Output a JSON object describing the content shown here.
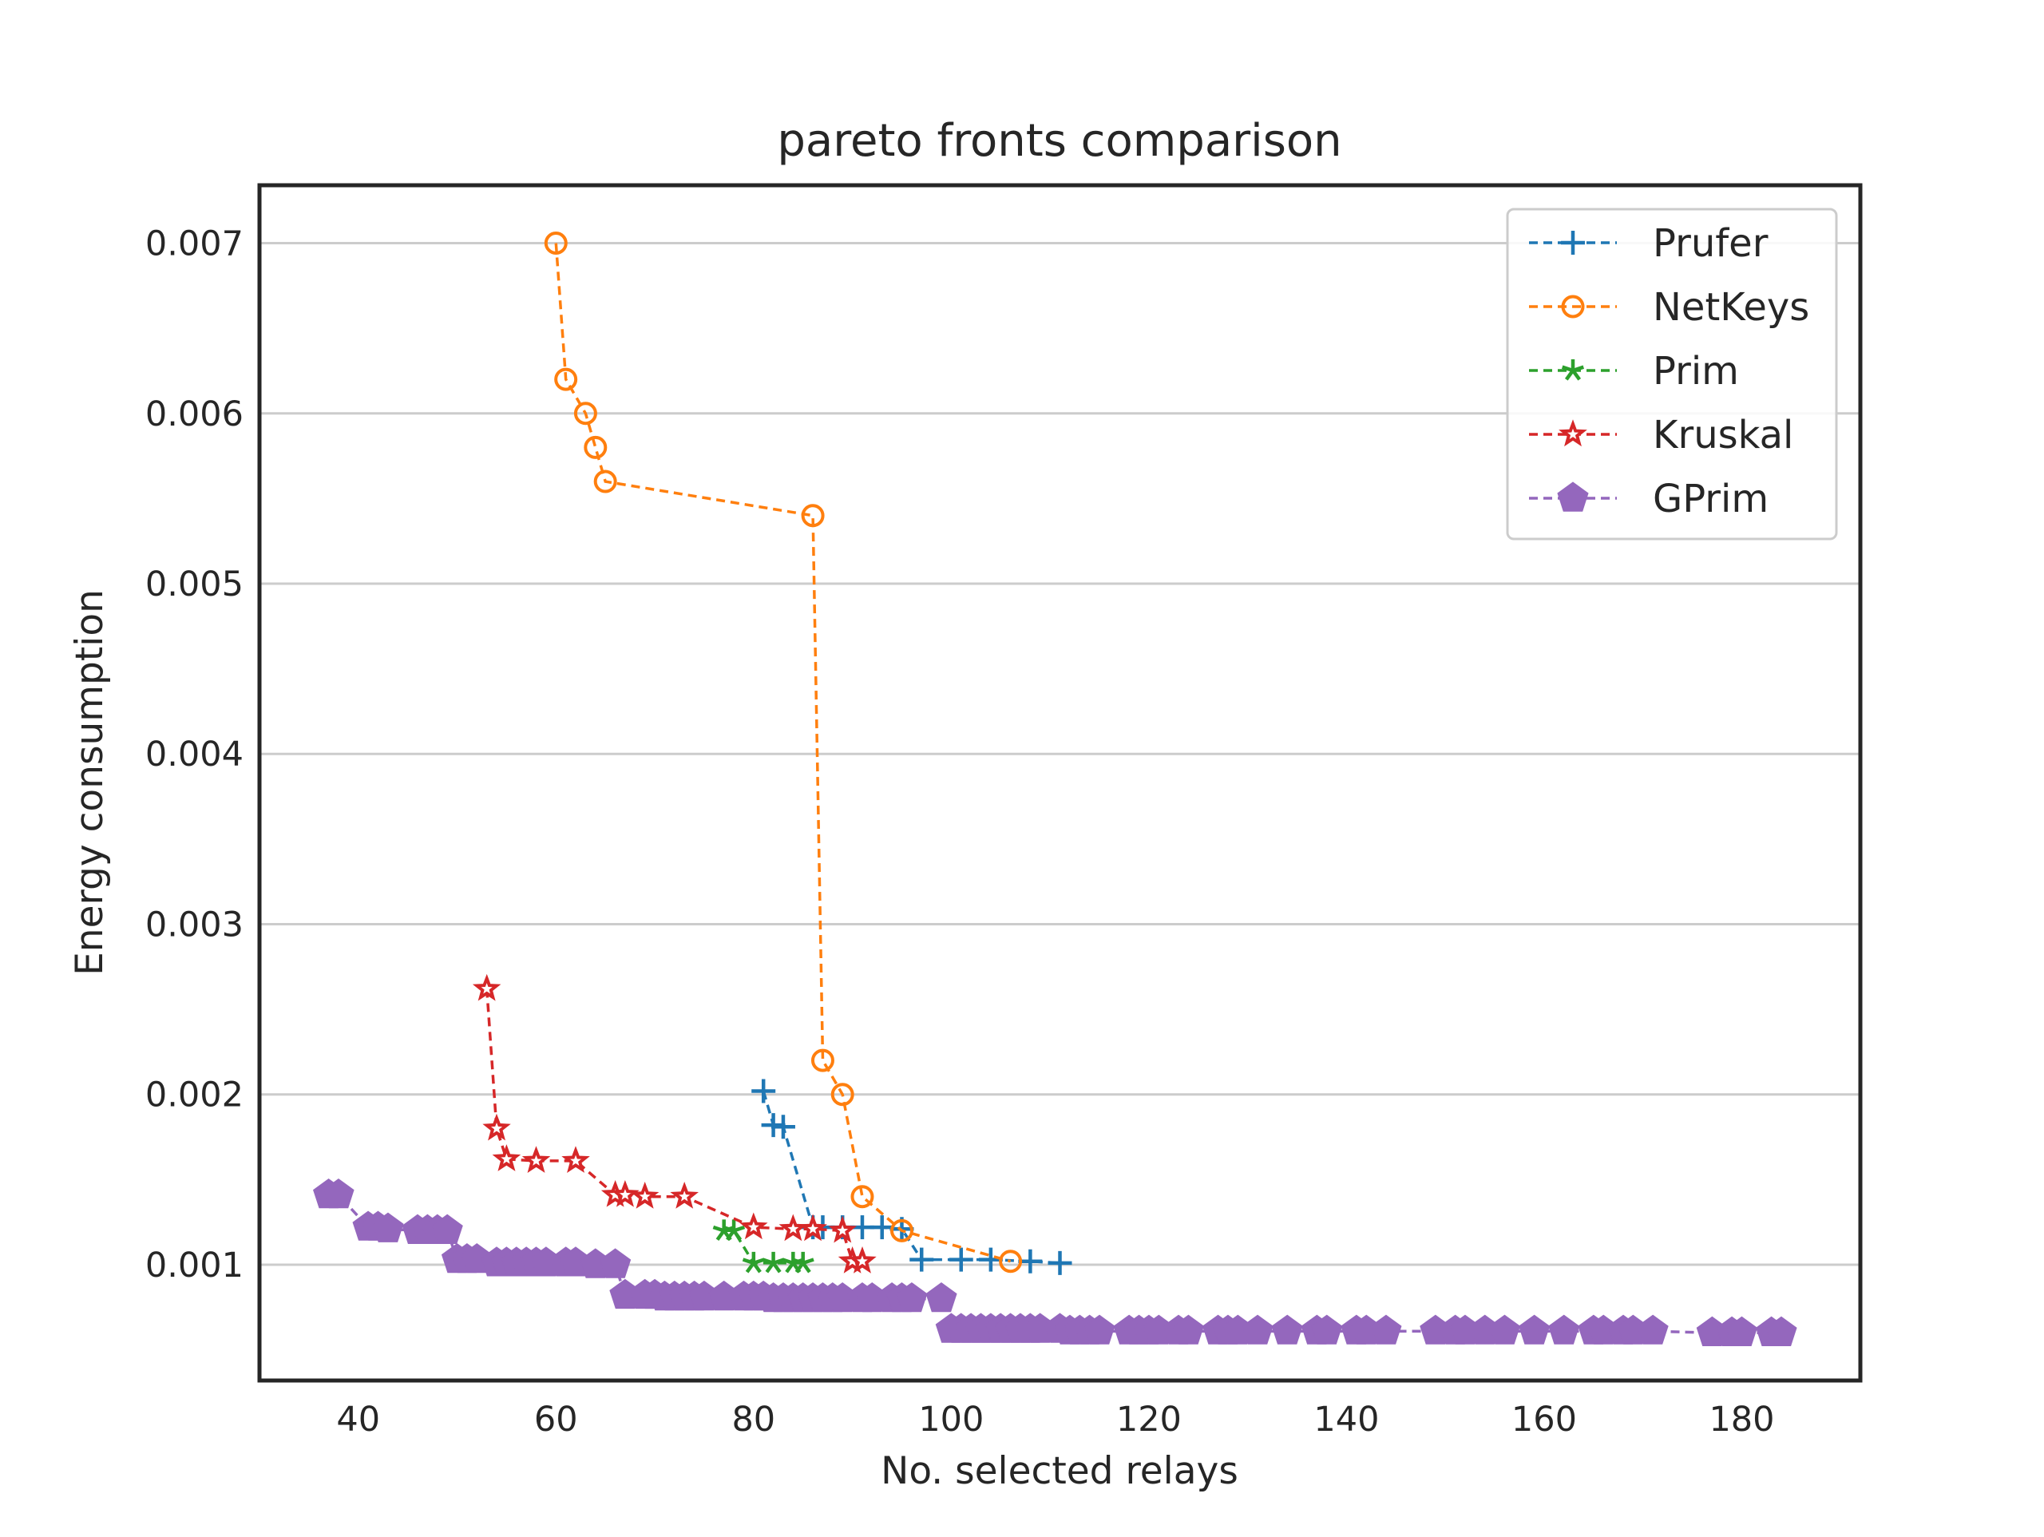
{
  "chart_data": {
    "type": "line",
    "title": "pareto fronts comparison",
    "xlabel": "No. selected relays",
    "ylabel": "Energy consumption",
    "xlim": [
      30,
      192
    ],
    "ylim": [
      0.00032,
      0.00734
    ],
    "xticks": [
      40,
      60,
      80,
      100,
      120,
      140,
      160,
      180
    ],
    "yticks": [
      0.001,
      0.002,
      0.003,
      0.004,
      0.005,
      0.006,
      0.007
    ],
    "xtick_labels": [
      "40",
      "60",
      "80",
      "100",
      "120",
      "140",
      "160",
      "180"
    ],
    "ytick_labels": [
      "0.001",
      "0.002",
      "0.003",
      "0.004",
      "0.005",
      "0.006",
      "0.007"
    ],
    "grid": "horizontal",
    "legend_position": "top-right",
    "series": [
      {
        "name": "Prufer",
        "color": "#1f77b4",
        "marker": "plus",
        "x": [
          81,
          82,
          83,
          86,
          87,
          89,
          91,
          93,
          95,
          97,
          101,
          104,
          108,
          111
        ],
        "y": [
          0.00202,
          0.00182,
          0.00181,
          0.00122,
          0.00122,
          0.00122,
          0.00122,
          0.00122,
          0.00121,
          0.00103,
          0.00103,
          0.00103,
          0.00102,
          0.00101
        ]
      },
      {
        "name": "NetKeys",
        "color": "#ff7f0e",
        "marker": "circle",
        "x": [
          60,
          61,
          63,
          64,
          65,
          86,
          87,
          89,
          91,
          95,
          106
        ],
        "y": [
          0.007,
          0.0062,
          0.006,
          0.0058,
          0.0056,
          0.0054,
          0.0022,
          0.002,
          0.0014,
          0.0012,
          0.00102
        ]
      },
      {
        "name": "Prim",
        "color": "#2ca02c",
        "marker": "star",
        "x": [
          77,
          78,
          80,
          82,
          84,
          85
        ],
        "y": [
          0.0012,
          0.0012,
          0.00101,
          0.00101,
          0.00101,
          0.00101
        ]
      },
      {
        "name": "Kruskal",
        "color": "#d62728",
        "marker": "star-hollow",
        "x": [
          53,
          54,
          55,
          58,
          62,
          66,
          67,
          69,
          73,
          80,
          84,
          86,
          89,
          90,
          91
        ],
        "y": [
          0.00262,
          0.0018,
          0.00162,
          0.00161,
          0.00161,
          0.00141,
          0.00141,
          0.0014,
          0.0014,
          0.00122,
          0.00121,
          0.00121,
          0.0012,
          0.00102,
          0.00102
        ]
      },
      {
        "name": "GPrim",
        "color": "#9467bd",
        "marker": "pentagon",
        "x": [
          37,
          38,
          41,
          42,
          43,
          46,
          47,
          48,
          49,
          50,
          51,
          52,
          54,
          55,
          56,
          57,
          58,
          59,
          61,
          62,
          64,
          66,
          67,
          69,
          70,
          71,
          72,
          73,
          74,
          75,
          77,
          79,
          80,
          81,
          82,
          83,
          84,
          85,
          86,
          87,
          88,
          89,
          91,
          92,
          94,
          95,
          96,
          99,
          100,
          101,
          102,
          103,
          104,
          105,
          106,
          107,
          108,
          109,
          111,
          112,
          113,
          114,
          115,
          118,
          119,
          120,
          121,
          123,
          124,
          127,
          128,
          129,
          131,
          134,
          137,
          138,
          141,
          142,
          144,
          149,
          151,
          152,
          154,
          156,
          159,
          162,
          165,
          166,
          168,
          169,
          171,
          177,
          179,
          180,
          183,
          184
        ],
        "y": [
          0.00141,
          0.00141,
          0.00122,
          0.00122,
          0.00121,
          0.0012,
          0.0012,
          0.0012,
          0.0012,
          0.00103,
          0.00103,
          0.00103,
          0.00101,
          0.00101,
          0.00101,
          0.00101,
          0.00101,
          0.00101,
          0.00101,
          0.00101,
          0.001,
          0.001,
          0.00082,
          0.00082,
          0.00082,
          0.00081,
          0.00081,
          0.00081,
          0.00081,
          0.00081,
          0.00081,
          0.00081,
          0.00081,
          0.00081,
          0.0008,
          0.0008,
          0.0008,
          0.0008,
          0.0008,
          0.0008,
          0.0008,
          0.0008,
          0.0008,
          0.0008,
          0.0008,
          0.0008,
          0.0008,
          0.0008,
          0.00062,
          0.00062,
          0.00062,
          0.00062,
          0.00062,
          0.00062,
          0.00062,
          0.00062,
          0.00062,
          0.00062,
          0.00062,
          0.00061,
          0.00061,
          0.00061,
          0.00061,
          0.00061,
          0.00061,
          0.00061,
          0.00061,
          0.00061,
          0.00061,
          0.00061,
          0.00061,
          0.00061,
          0.00061,
          0.00061,
          0.00061,
          0.00061,
          0.00061,
          0.00061,
          0.00061,
          0.00061,
          0.00061,
          0.00061,
          0.00061,
          0.00061,
          0.00061,
          0.00061,
          0.00061,
          0.00061,
          0.00061,
          0.00061,
          0.00061,
          0.0006,
          0.0006,
          0.0006,
          0.0006,
          0.0006
        ]
      }
    ]
  }
}
